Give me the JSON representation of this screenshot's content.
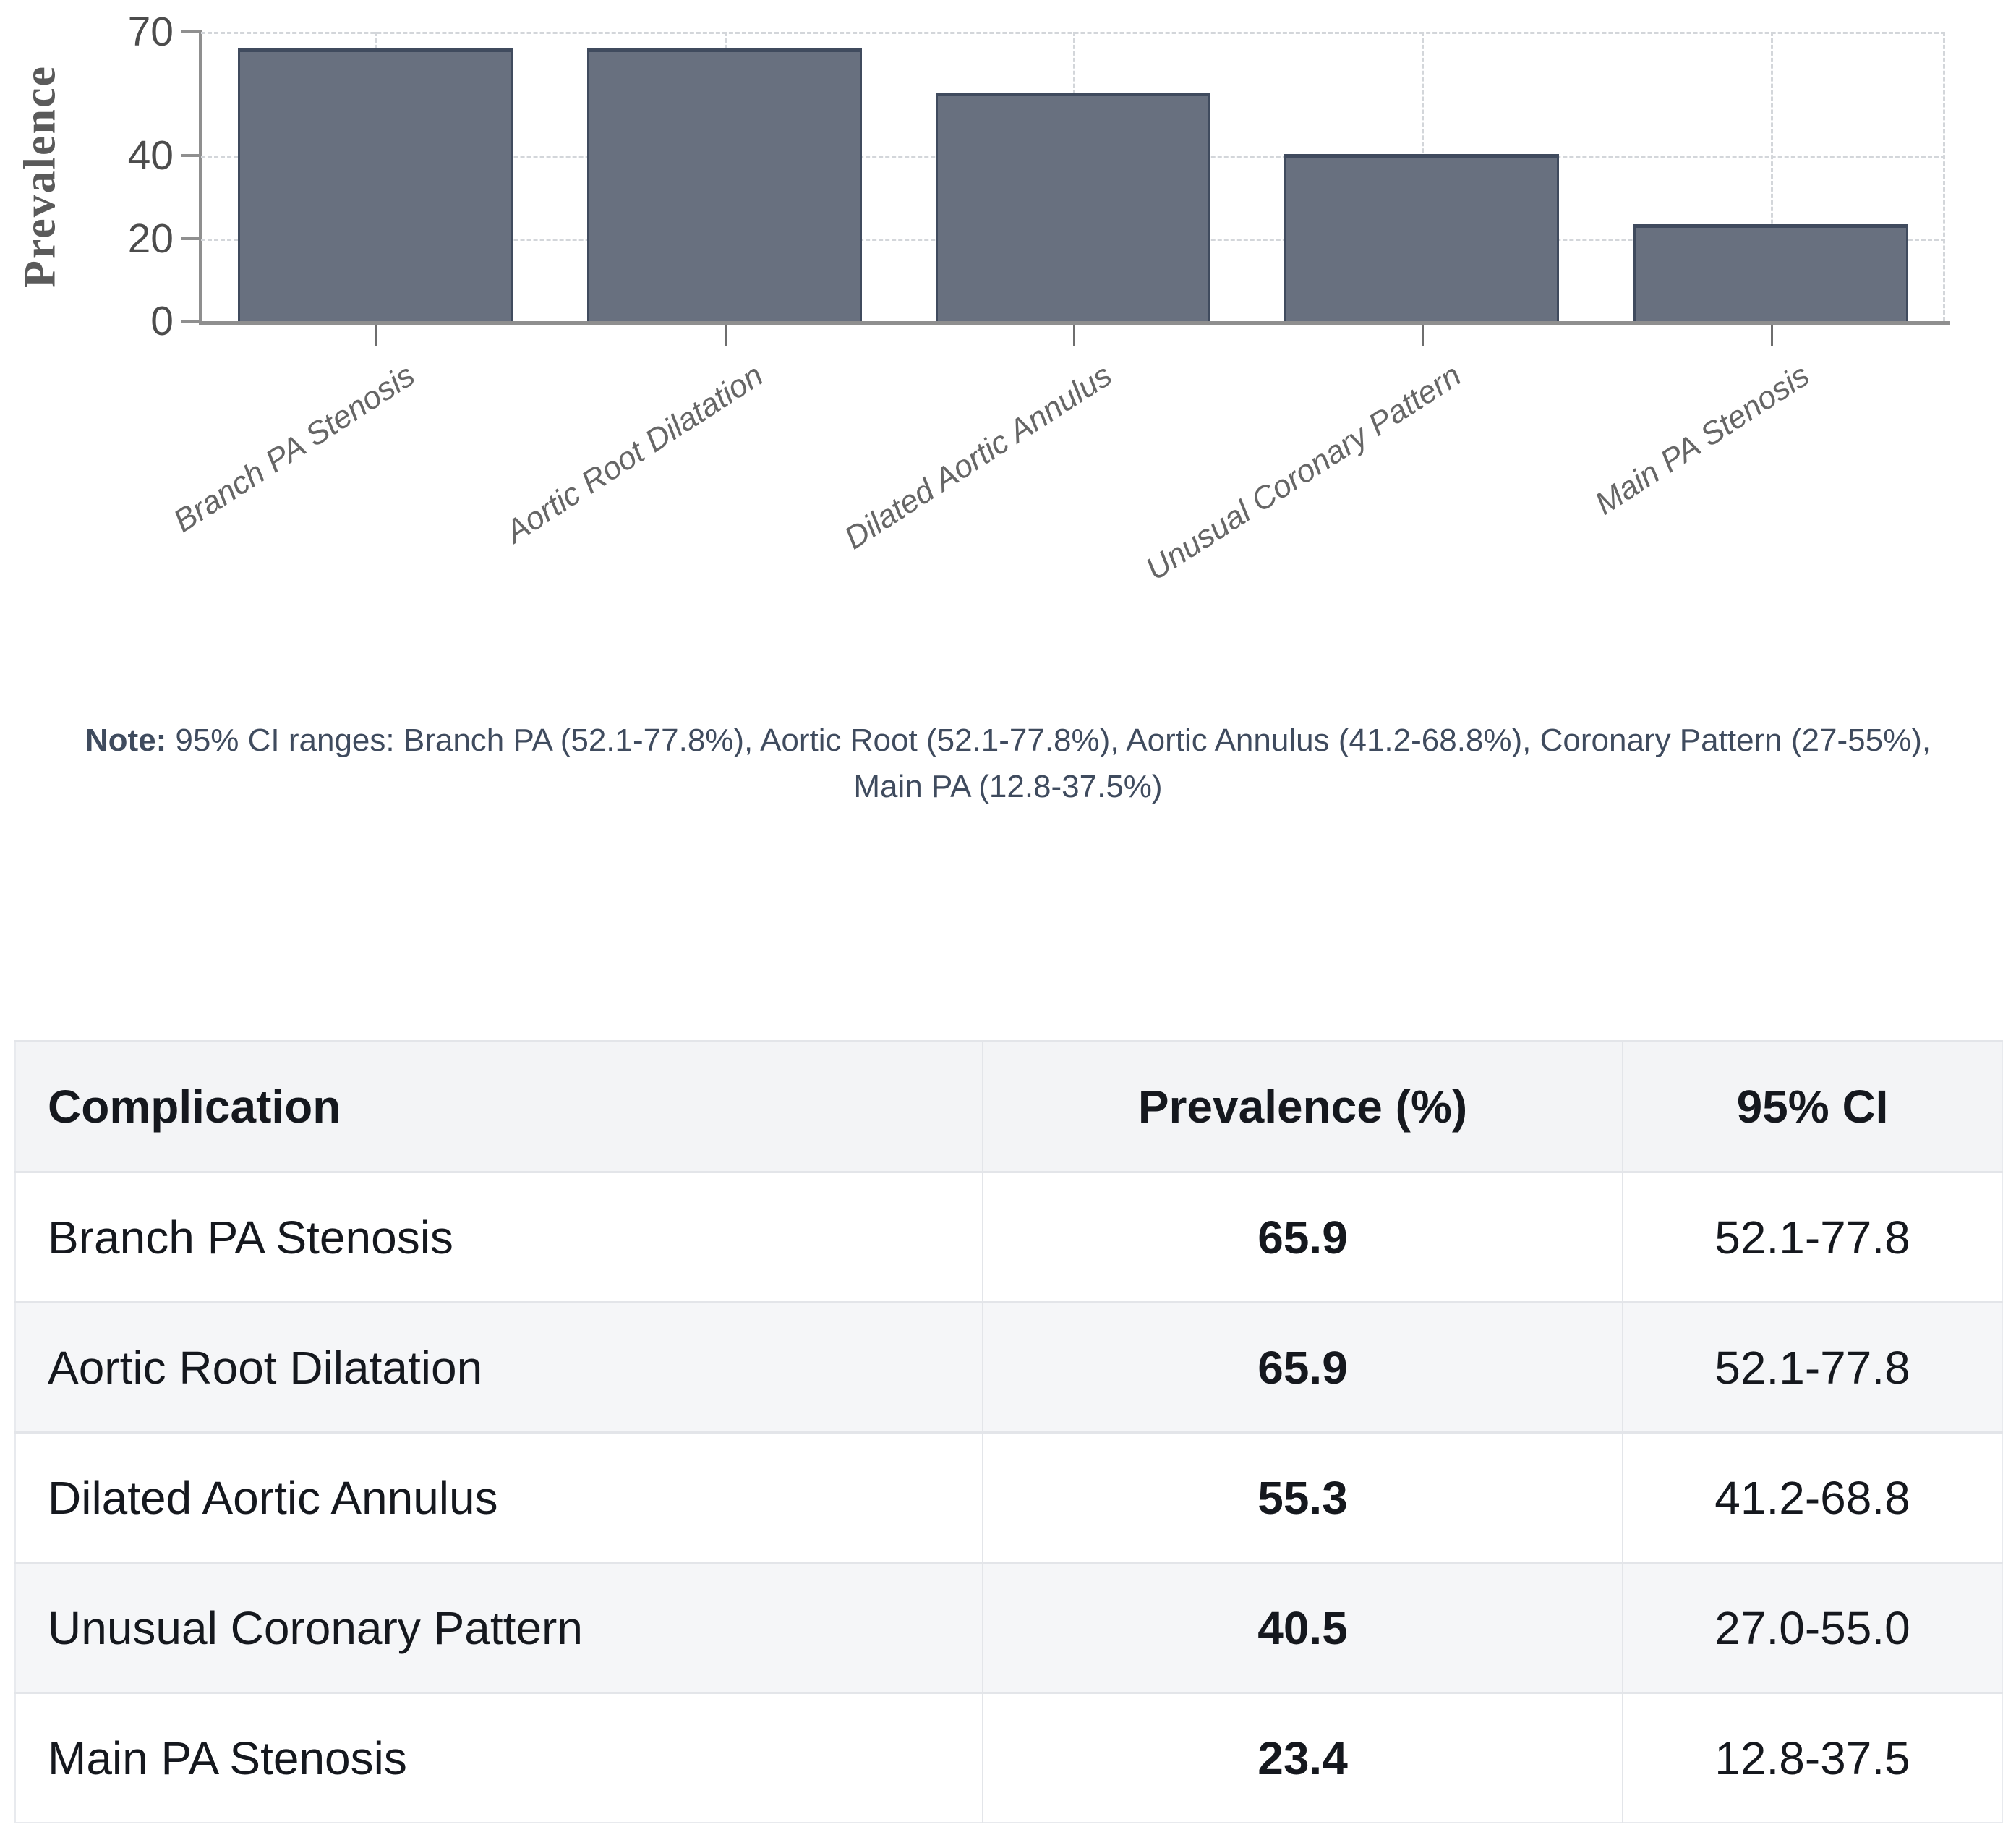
{
  "chart_data": {
    "type": "bar",
    "title": "",
    "xlabel": "",
    "ylabel": "Prevalence",
    "categories": [
      "Branch PA Stenosis",
      "Aortic Root Dilatation",
      "Dilated Aortic Annulus",
      "Unusual Coronary Pattern",
      "Main PA Stenosis"
    ],
    "values": [
      65.9,
      65.9,
      55.3,
      40.5,
      23.4
    ],
    "ci_ranges": [
      "52.1-77.8",
      "52.1-77.8",
      "41.2-68.8",
      "27.0-55.0",
      "12.8-37.5"
    ],
    "ylim": [
      0,
      70
    ],
    "yticks": [
      70,
      40,
      20,
      0
    ],
    "grid": true,
    "legend_position": "none",
    "bar_color": "#68707f",
    "bar_border_color": "#404b5e"
  },
  "note": {
    "label": "Note:",
    "text": "95% CI ranges: Branch PA (52.1-77.8%), Aortic Root (52.1-77.8%), Aortic Annulus (41.2-68.8%), Coronary Pattern (27-55%),\nMain PA (12.8-37.5%)"
  },
  "table": {
    "headers": [
      "Complication",
      "Prevalence (%)",
      "95% CI"
    ],
    "rows": [
      [
        "Branch PA Stenosis",
        "65.9",
        "52.1-77.8"
      ],
      [
        "Aortic Root Dilatation",
        "65.9",
        "52.1-77.8"
      ],
      [
        "Dilated Aortic Annulus",
        "55.3",
        "41.2-68.8"
      ],
      [
        "Unusual Coronary Pattern",
        "40.5",
        "27.0-55.0"
      ],
      [
        "Main PA Stenosis",
        "23.4",
        "12.8-37.5"
      ]
    ]
  }
}
